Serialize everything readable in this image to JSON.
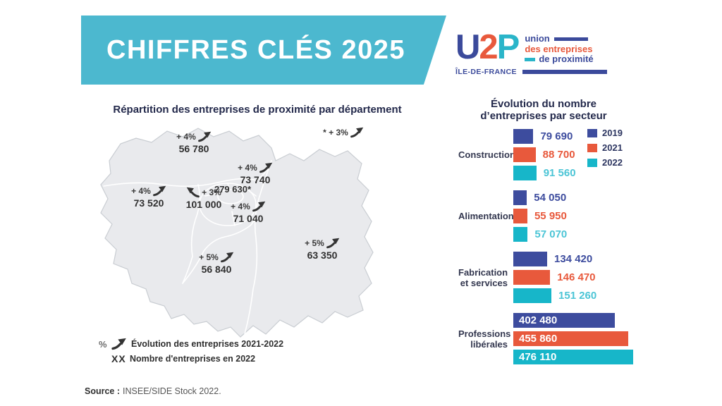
{
  "header": {
    "title": "CHIFFRES CLÉS 2025"
  },
  "logo": {
    "letters": [
      {
        "char": "U",
        "color": "#3b4a9b"
      },
      {
        "char": "2",
        "color": "#e8593c"
      },
      {
        "char": "P",
        "color": "#2ab5c9"
      }
    ],
    "tagline_line1": "union",
    "tagline_line2": "des entreprises",
    "tagline_line3": "de proximité",
    "region": "ÎLE-DE-FRANCE"
  },
  "map": {
    "title": "Répartition des entreprises de proximité par département",
    "labels": {
      "footnote": {
        "growth": "* + 3%"
      },
      "val_doise": {
        "growth": "+ 4%",
        "count": "56 780"
      },
      "yvelines": {
        "growth": "+ 4%",
        "count": "73 520"
      },
      "seine_saint_denis": {
        "growth": "+ 4%",
        "count": "73 740"
      },
      "paris": {
        "count": "279 630*"
      },
      "hauts_de_seine": {
        "growth": "+ 3%",
        "count": "101 000"
      },
      "val_de_marne": {
        "growth": "+ 4%",
        "count": "71 040"
      },
      "essonne": {
        "growth": "+ 5%",
        "count": "56 840"
      },
      "seine_et_marne": {
        "growth": "+ 5%",
        "count": "63 350"
      }
    },
    "legend": {
      "row1_symbol": "%",
      "row1_label": "Évolution des entreprises 2021-2022",
      "row2_symbol": "XX",
      "row2_label": "Nombre d'entreprises en 2022"
    }
  },
  "source": {
    "label": "Source :",
    "text": "INSEE/SIDE Stock 2022."
  },
  "chart_data": {
    "type": "bar",
    "orientation": "horizontal",
    "title_lines": [
      "Évolution du nombre",
      "d’entreprises par secteur"
    ],
    "categories": [
      "Construction",
      "Alimentation",
      "Fabrication\net services",
      "Professions\nlibérales"
    ],
    "series": [
      {
        "name": "2019",
        "color": "#3d4c9e",
        "value_color": "#3d4c9e",
        "values": [
          79690,
          54050,
          134420,
          402480
        ]
      },
      {
        "name": "2021",
        "color": "#e8593c",
        "value_color": "#e8593c",
        "values": [
          88700,
          55950,
          146470,
          455860
        ]
      },
      {
        "name": "2022",
        "color": "#17b6c9",
        "value_color": "#4cc5d6",
        "values": [
          91560,
          57070,
          151260,
          476110
        ]
      }
    ],
    "legend_position": "top-right",
    "axis": "none",
    "value_labels": "outside (inside bar when bar is long)"
  },
  "colors": {
    "banner": "#4cb8cf",
    "navy_title": "#23294b",
    "blue_2019": "#3d4c9e",
    "orange_2021": "#e8593c",
    "teal_2022": "#17b6c9",
    "map_fill": "#e9eaed",
    "map_outline": "#c9cdd2",
    "map_inner_border": "#ffffff",
    "map_text": "#3a3a3a"
  }
}
